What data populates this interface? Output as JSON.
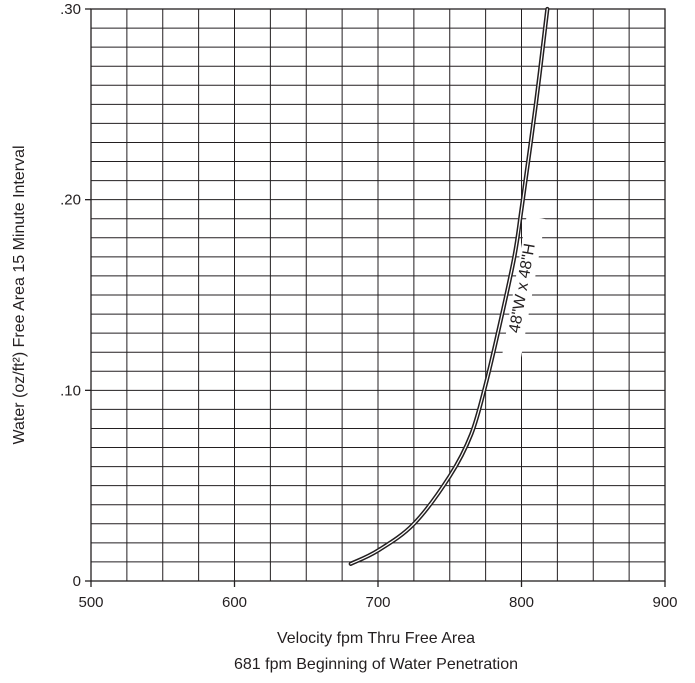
{
  "chart_data": {
    "type": "line",
    "xlabel": "Velocity fpm Thru Free Area",
    "xlabel_line2": "681 fpm Beginning of Water Penetration",
    "ylabel": "Water (oz/ft²) Free Area 15 Minute Interval",
    "xlim": [
      500,
      900
    ],
    "ylim": [
      0,
      0.3
    ],
    "x_ticks": [
      {
        "value": 500,
        "label": "500"
      },
      {
        "value": 600,
        "label": "600"
      },
      {
        "value": 700,
        "label": "700"
      },
      {
        "value": 800,
        "label": "800"
      },
      {
        "value": 900,
        "label": "900"
      }
    ],
    "y_ticks": [
      {
        "value": 0,
        "label": "0"
      },
      {
        "value": 0.1,
        "label": ".10"
      },
      {
        "value": 0.2,
        "label": ".20"
      },
      {
        "value": 0.3,
        "label": ".30"
      }
    ],
    "grid": true,
    "x_grid_step": 25,
    "y_grid_step": 0.01,
    "series": [
      {
        "annotation": "48\"W x 48\"H",
        "color": "#231f20",
        "points": [
          [
            681,
            0.009
          ],
          [
            700,
            0.016
          ],
          [
            725,
            0.03
          ],
          [
            750,
            0.055
          ],
          [
            765,
            0.077
          ],
          [
            775,
            0.103
          ],
          [
            785,
            0.135
          ],
          [
            795,
            0.17
          ],
          [
            800,
            0.195
          ],
          [
            810,
            0.25
          ],
          [
            818,
            0.3
          ]
        ]
      }
    ]
  }
}
